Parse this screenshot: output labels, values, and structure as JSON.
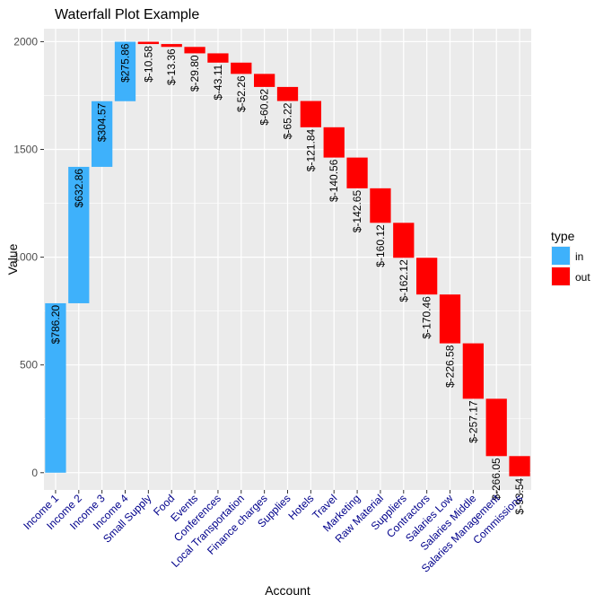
{
  "chart_data": {
    "type": "waterfall",
    "title": "Waterfall Plot Example",
    "xlabel": "Account",
    "ylabel": "Value",
    "ylim": [
      -80,
      2060
    ],
    "yticks": [
      0,
      500,
      1000,
      1500,
      2000
    ],
    "grid": true,
    "legend_position": "right",
    "legend": {
      "title": "type",
      "entries": [
        {
          "key": "in",
          "label": "in",
          "color": "#3EB1FB"
        },
        {
          "key": "out",
          "label": "out",
          "color": "#FF0000"
        }
      ]
    },
    "tick_label_color": "#00008B",
    "categories": [
      "Income 1",
      "Income 2",
      "Income 3",
      "Income 4",
      "Small Supply",
      "Food",
      "Events",
      "Conferences",
      "Local Transportation",
      "Finance charges",
      "Supplies",
      "Hotels",
      "Travel",
      "Marketing",
      "Raw Material",
      "Suppliers",
      "Contractors",
      "Salaries Low",
      "Salaries Middle",
      "Salaries Management",
      "Commissions"
    ],
    "values": [
      786.2,
      632.86,
      304.57,
      275.86,
      -10.58,
      -13.36,
      -29.8,
      -43.11,
      -52.26,
      -60.62,
      -65.22,
      -121.84,
      -140.56,
      -142.65,
      -160.12,
      -162.12,
      -170.46,
      -226.58,
      -257.17,
      -266.05,
      -93.54
    ],
    "types": [
      "in",
      "in",
      "in",
      "in",
      "out",
      "out",
      "out",
      "out",
      "out",
      "out",
      "out",
      "out",
      "out",
      "out",
      "out",
      "out",
      "out",
      "out",
      "out",
      "out",
      "out"
    ],
    "data_labels": [
      "$786.20",
      "$632.86",
      "$304.57",
      "$275.86",
      "$-10.58",
      "$-13.36",
      "$-29.80",
      "$-43.11",
      "$-52.26",
      "$-60.62",
      "$-65.22",
      "$-121.84",
      "$-140.56",
      "$-142.65",
      "$-160.12",
      "$-162.12",
      "$-170.46",
      "$-226.58",
      "$-257.17",
      "$-266.05",
      "$-93.54"
    ]
  }
}
